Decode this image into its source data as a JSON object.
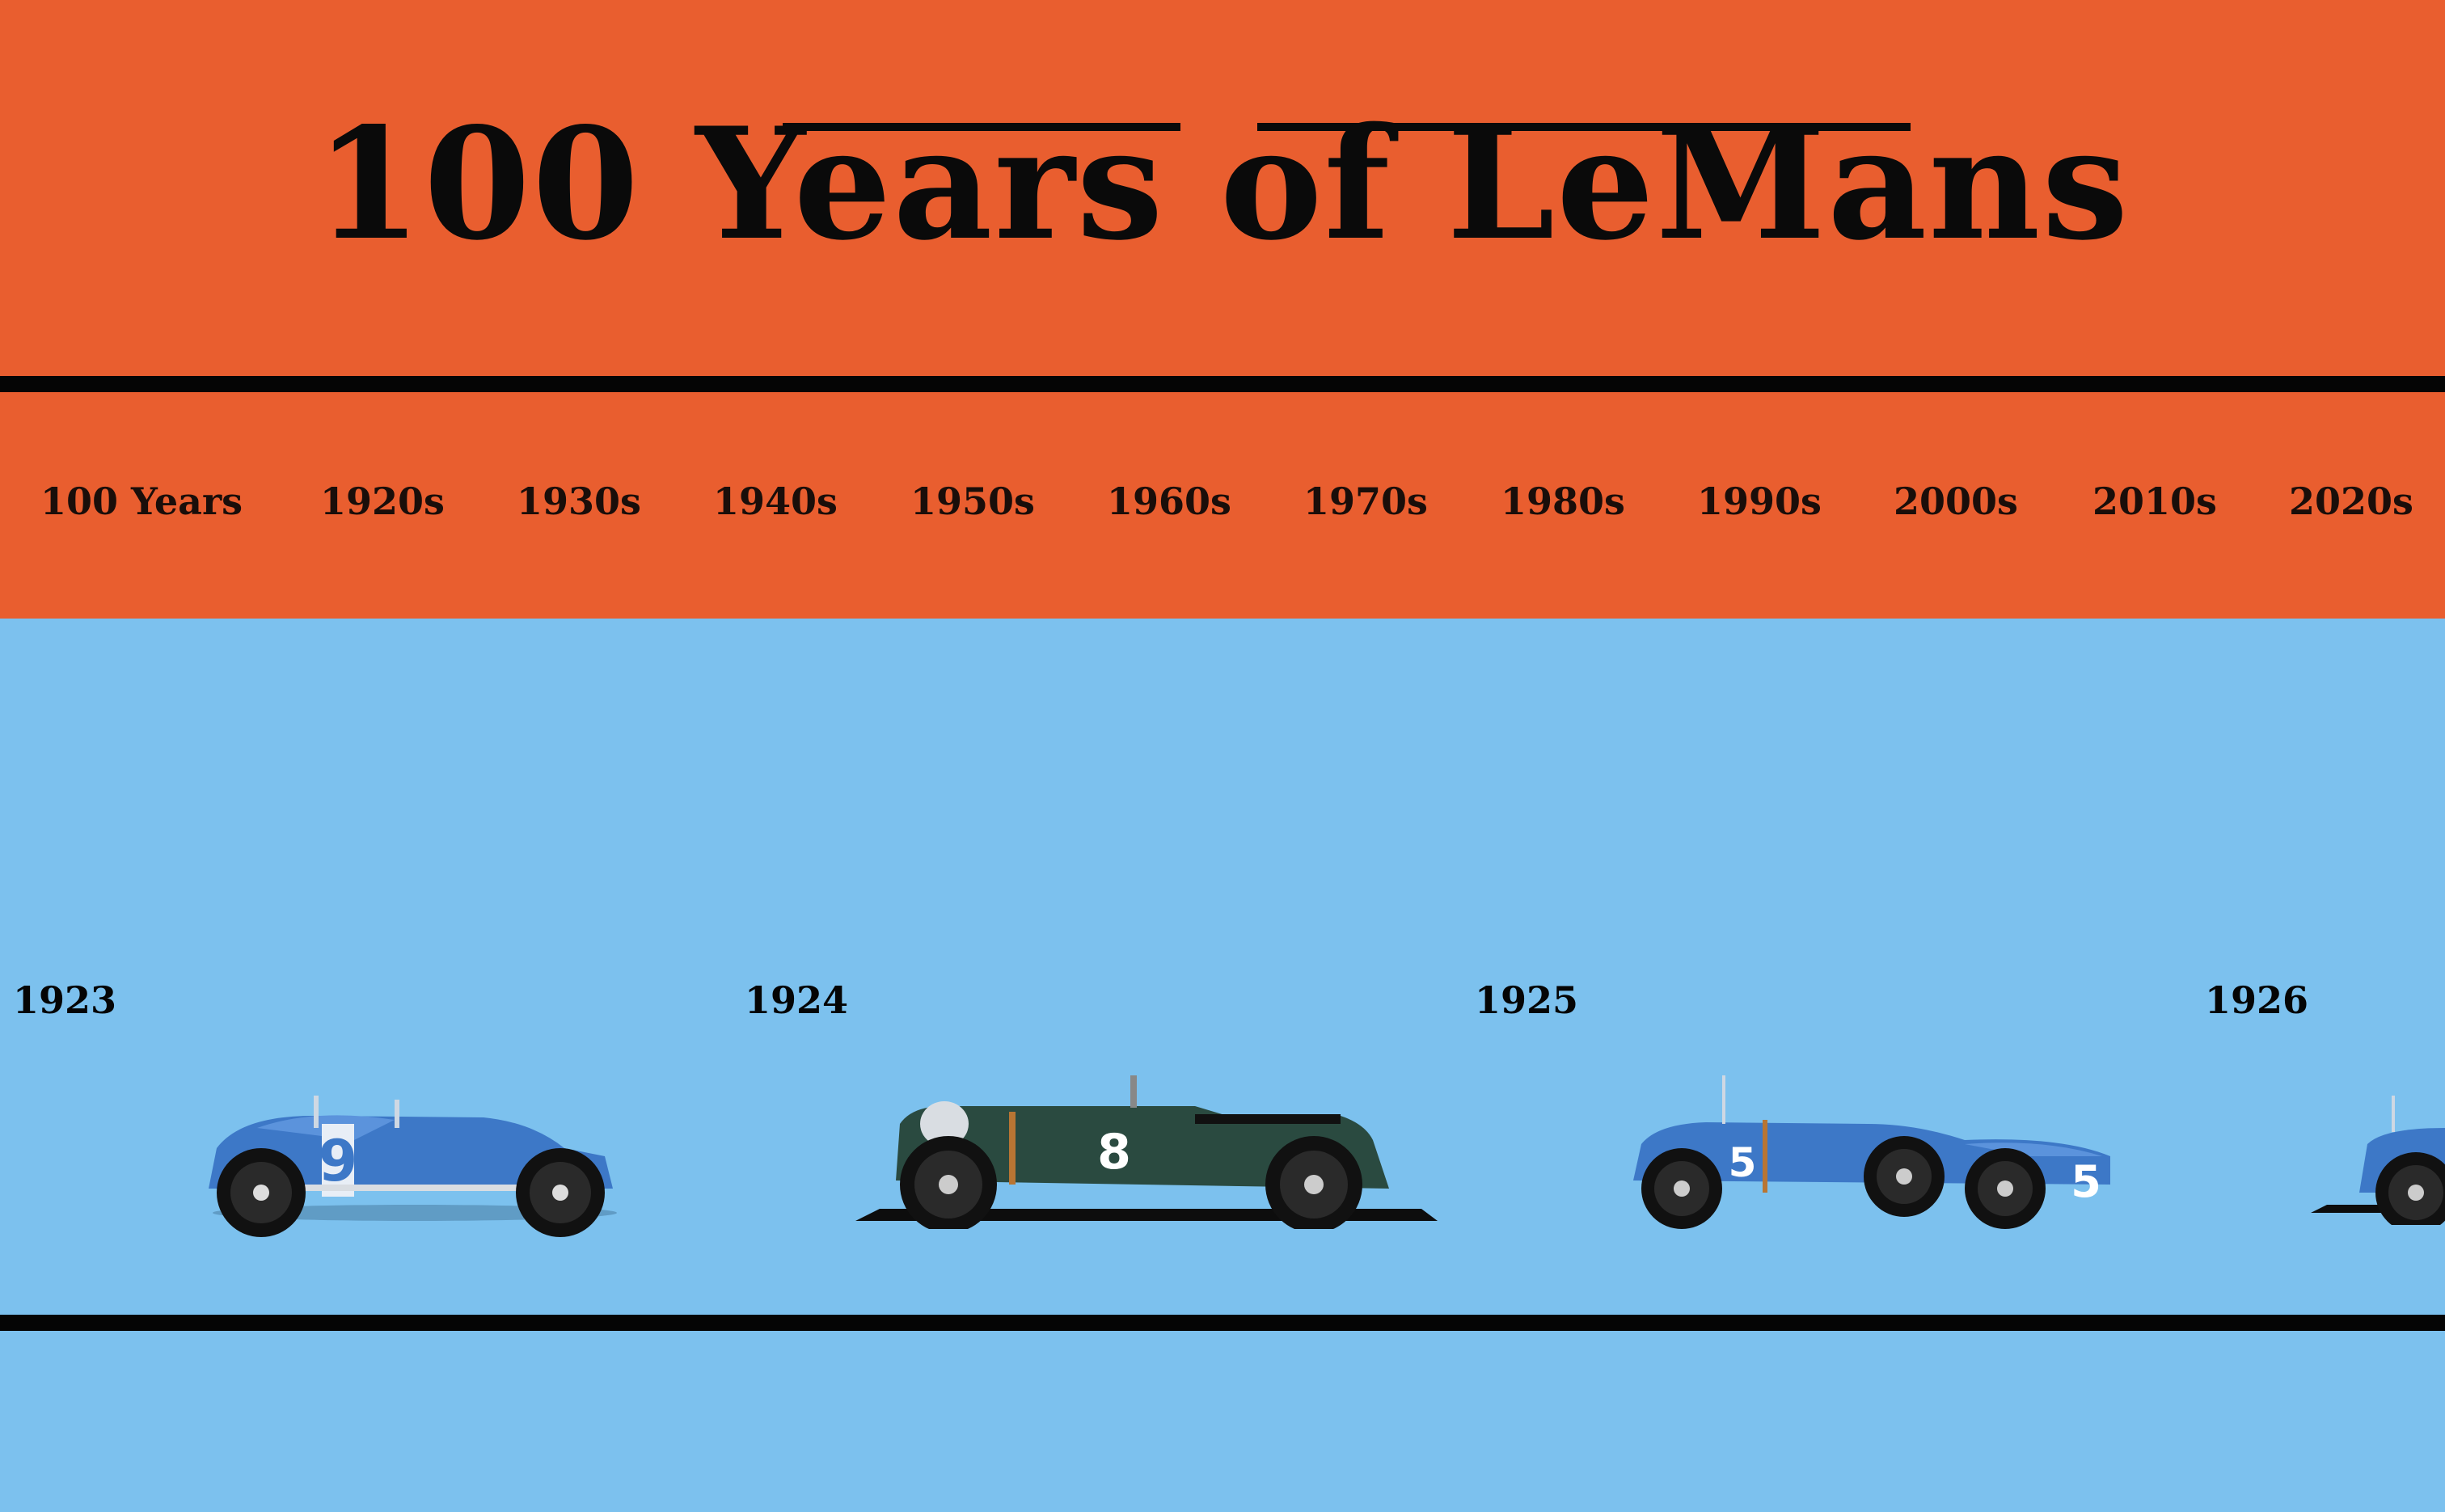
{
  "header": {
    "title": "100 Years of LeMans"
  },
  "nav": {
    "items": [
      {
        "label": "100 Years"
      },
      {
        "label": "1920s"
      },
      {
        "label": "1930s"
      },
      {
        "label": "1940s"
      },
      {
        "label": "1950s"
      },
      {
        "label": "1960s"
      },
      {
        "label": "1970s"
      },
      {
        "label": "1980s"
      },
      {
        "label": "1990s"
      },
      {
        "label": "2000s"
      },
      {
        "label": "2010s"
      },
      {
        "label": "2020s"
      }
    ]
  },
  "timeline": {
    "entries": [
      {
        "year": "1923",
        "car_number": "9",
        "color": "#3d78c7"
      },
      {
        "year": "1924",
        "car_number": "8",
        "color": "#2a4a40"
      },
      {
        "year": "1925",
        "car_number": "5",
        "color": "#3d78c7"
      },
      {
        "year": "1926",
        "car_number": "",
        "color": "#3d78c7"
      }
    ]
  },
  "colors": {
    "header_bg": "#e95e2f",
    "track_bg": "#7cc1ee",
    "rule": "#050505"
  }
}
